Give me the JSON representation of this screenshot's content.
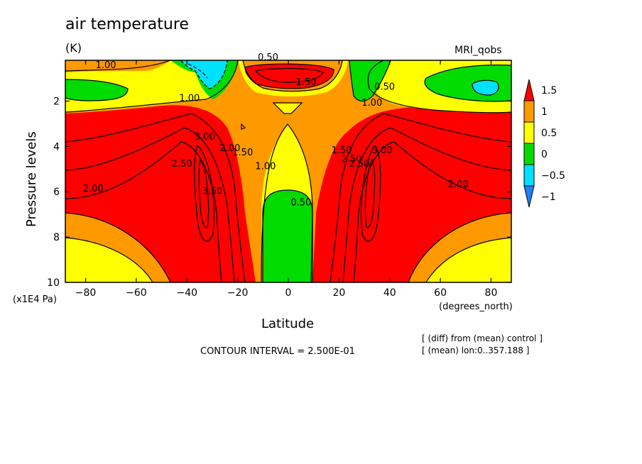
{
  "title": "air temperature",
  "units": "(K)",
  "model": "MRI_qobs",
  "notes": [
    "[ (diff) from (mean) control ]",
    "[ (mean) lon:0..357.188 ]"
  ],
  "contour_interval": "CONTOUR INTERVAL = 2.500E-01",
  "chart_data": {
    "type": "heatmap",
    "title": "air temperature",
    "units": "(K)",
    "xlabel": "Latitude",
    "xunits": "(degrees_north)",
    "ylabel": "Pressure levels",
    "yscale": "(x1E4 Pa)",
    "xlim": [
      -88,
      88
    ],
    "ylim": [
      10,
      0.2
    ],
    "xticks": [
      -80,
      -60,
      -40,
      -20,
      0,
      20,
      40,
      60,
      80
    ],
    "xtick_labels": [
      "−80",
      "−60",
      "−40",
      "−20",
      "0",
      "20",
      "40",
      "60",
      "80"
    ],
    "yticks": [
      2,
      4,
      6,
      8,
      10
    ],
    "ytick_labels": [
      "2",
      "4",
      "6",
      "8",
      "10"
    ],
    "colorbar": {
      "levels": [
        -1,
        -0.5,
        0,
        0.5,
        1,
        1.5
      ],
      "labels": [
        "−1",
        "−0.5",
        "0",
        "0.5",
        "1",
        "1.5"
      ],
      "colors": [
        "#1f7fff",
        "#00e0ff",
        "#00dc00",
        "#ffff00",
        "#ff9900",
        "#ff0000"
      ]
    },
    "contour_labels": [
      {
        "text": "0.50",
        "lat": -8,
        "p": 0.2
      },
      {
        "text": "1.00",
        "lat": -72,
        "p": 0.55
      },
      {
        "text": "1.50",
        "lat": 7,
        "p": 1.3
      },
      {
        "text": "1.00",
        "lat": -39,
        "p": 2.0
      },
      {
        "text": "0.50",
        "lat": 38,
        "p": 1.5
      },
      {
        "text": "1.00",
        "lat": 33,
        "p": 2.2
      },
      {
        "text": "3.00",
        "lat": -33,
        "p": 3.7
      },
      {
        "text": "2.00",
        "lat": -23,
        "p": 4.2
      },
      {
        "text": "1.50",
        "lat": -18,
        "p": 4.4
      },
      {
        "text": "2.50",
        "lat": -42,
        "p": 4.9
      },
      {
        "text": "1.00",
        "lat": -9,
        "p": 5.0
      },
      {
        "text": "1.50",
        "lat": 21,
        "p": 4.3
      },
      {
        "text": "2.50",
        "lat": 25,
        "p": 4.7
      },
      {
        "text": "2.50",
        "lat": 28,
        "p": 4.9
      },
      {
        "text": "3.00",
        "lat": 37,
        "p": 4.3
      },
      {
        "text": "3.50",
        "lat": -30,
        "p": 6.1
      },
      {
        "text": "2.00",
        "lat": -77,
        "p": 6.0
      },
      {
        "text": "0.50",
        "lat": 5,
        "p": 6.6
      },
      {
        "text": "2.00",
        "lat": 67,
        "p": 5.8
      }
    ]
  }
}
